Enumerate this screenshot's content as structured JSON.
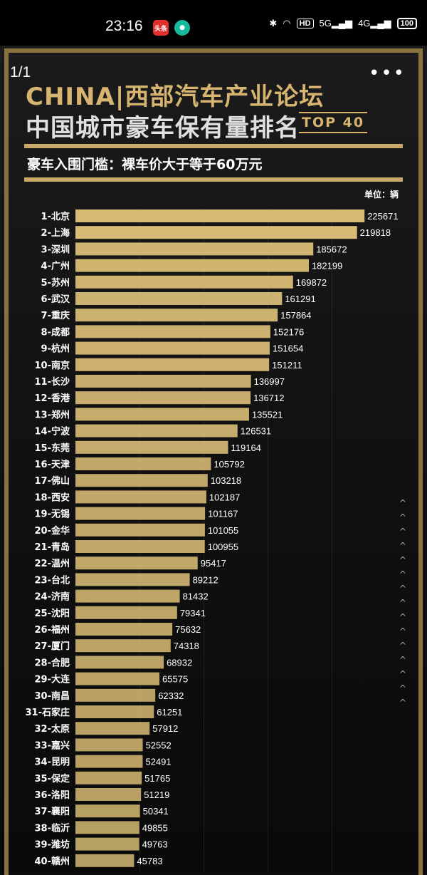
{
  "status_bar": {
    "time": "23:16",
    "app_icon_1": "头条",
    "signal_hd": "HD",
    "net_5g": "5G",
    "net_4g": "4G",
    "battery": "100"
  },
  "viewer": {
    "page_counter": "1/1",
    "more_menu": "⋮"
  },
  "poster": {
    "title_line1": "CHINA|西部汽车产业论坛",
    "title_line2": "中国城市豪车保有量排名",
    "title_badge": "TOP 40",
    "subtitle": "豪车入围门槛：裸车价大于等于60万元",
    "unit": "单位：辆",
    "bar_color": "#d8bc76"
  },
  "chart_data": {
    "type": "bar",
    "orientation": "horizontal",
    "unit": "单位：辆",
    "categories": [
      "1-北京",
      "2-上海",
      "3-深圳",
      "4-广州",
      "5-苏州",
      "6-武汉",
      "7-重庆",
      "8-成都",
      "9-杭州",
      "10-南京",
      "11-长沙",
      "12-香港",
      "13-郑州",
      "14-宁波",
      "15-东莞",
      "16-天津",
      "17-佛山",
      "18-西安",
      "19-无锡",
      "20-金华",
      "21-青岛",
      "22-温州",
      "23-台北",
      "24-济南",
      "25-沈阳",
      "26-福州",
      "27-厦门",
      "28-合肥",
      "29-大连",
      "30-南昌",
      "31-石家庄",
      "32-太原",
      "33-嘉兴",
      "34-昆明",
      "35-保定",
      "36-洛阳",
      "37-襄阳",
      "38-临沂",
      "39-潍坊",
      "40-赣州"
    ],
    "values": [
      225671,
      219818,
      185672,
      182199,
      169872,
      161291,
      157864,
      152176,
      151654,
      151211,
      136997,
      136712,
      135521,
      126531,
      119164,
      105792,
      103218,
      102187,
      101167,
      101055,
      100955,
      95417,
      89212,
      81432,
      79341,
      75632,
      74318,
      68932,
      65575,
      62332,
      61251,
      57912,
      52552,
      52491,
      51765,
      51219,
      50341,
      49855,
      49763,
      45783
    ],
    "grid": true,
    "legend": "none"
  }
}
